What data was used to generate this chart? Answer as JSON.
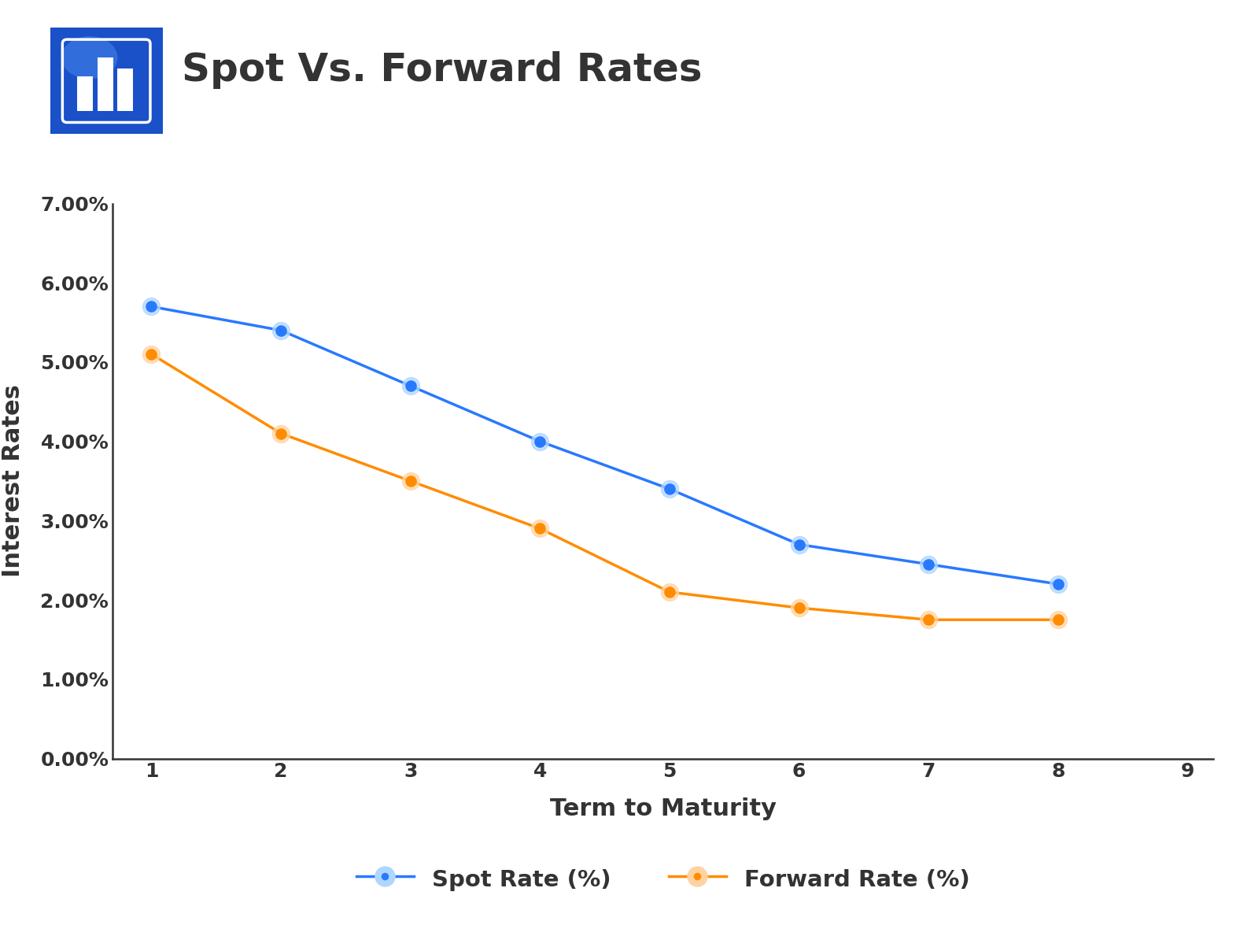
{
  "title": "Spot Vs. Forward Rates",
  "xlabel": "Term to Maturity",
  "ylabel": "Interest Rates",
  "spot_x": [
    1,
    2,
    3,
    4,
    5,
    6,
    7,
    8
  ],
  "spot_y": [
    0.057,
    0.054,
    0.047,
    0.04,
    0.034,
    0.027,
    0.0245,
    0.022
  ],
  "forward_x": [
    1,
    2,
    3,
    4,
    5,
    6,
    7,
    8
  ],
  "forward_y": [
    0.051,
    0.041,
    0.035,
    0.029,
    0.021,
    0.019,
    0.0175,
    0.0175
  ],
  "spot_color": "#2979FF",
  "forward_color": "#FF8C00",
  "spot_halo_color": "#AED6FF",
  "forward_halo_color": "#FFD3A0",
  "background_color": "#FFFFFF",
  "axis_color": "#333333",
  "ylim": [
    0.0,
    0.07
  ],
  "xlim": [
    0.7,
    9.2
  ],
  "yticks": [
    0.0,
    0.01,
    0.02,
    0.03,
    0.04,
    0.05,
    0.06,
    0.07
  ],
  "xticks": [
    1,
    2,
    3,
    4,
    5,
    6,
    7,
    8,
    9
  ],
  "legend_spot": "Spot Rate (%)",
  "legend_forward": "Forward Rate (%)",
  "title_color": "#333333",
  "title_fontsize": 36,
  "label_fontsize": 22,
  "tick_fontsize": 18,
  "icon_circle_color": "#1A50C8",
  "icon_highlight_color": "#4488EE"
}
